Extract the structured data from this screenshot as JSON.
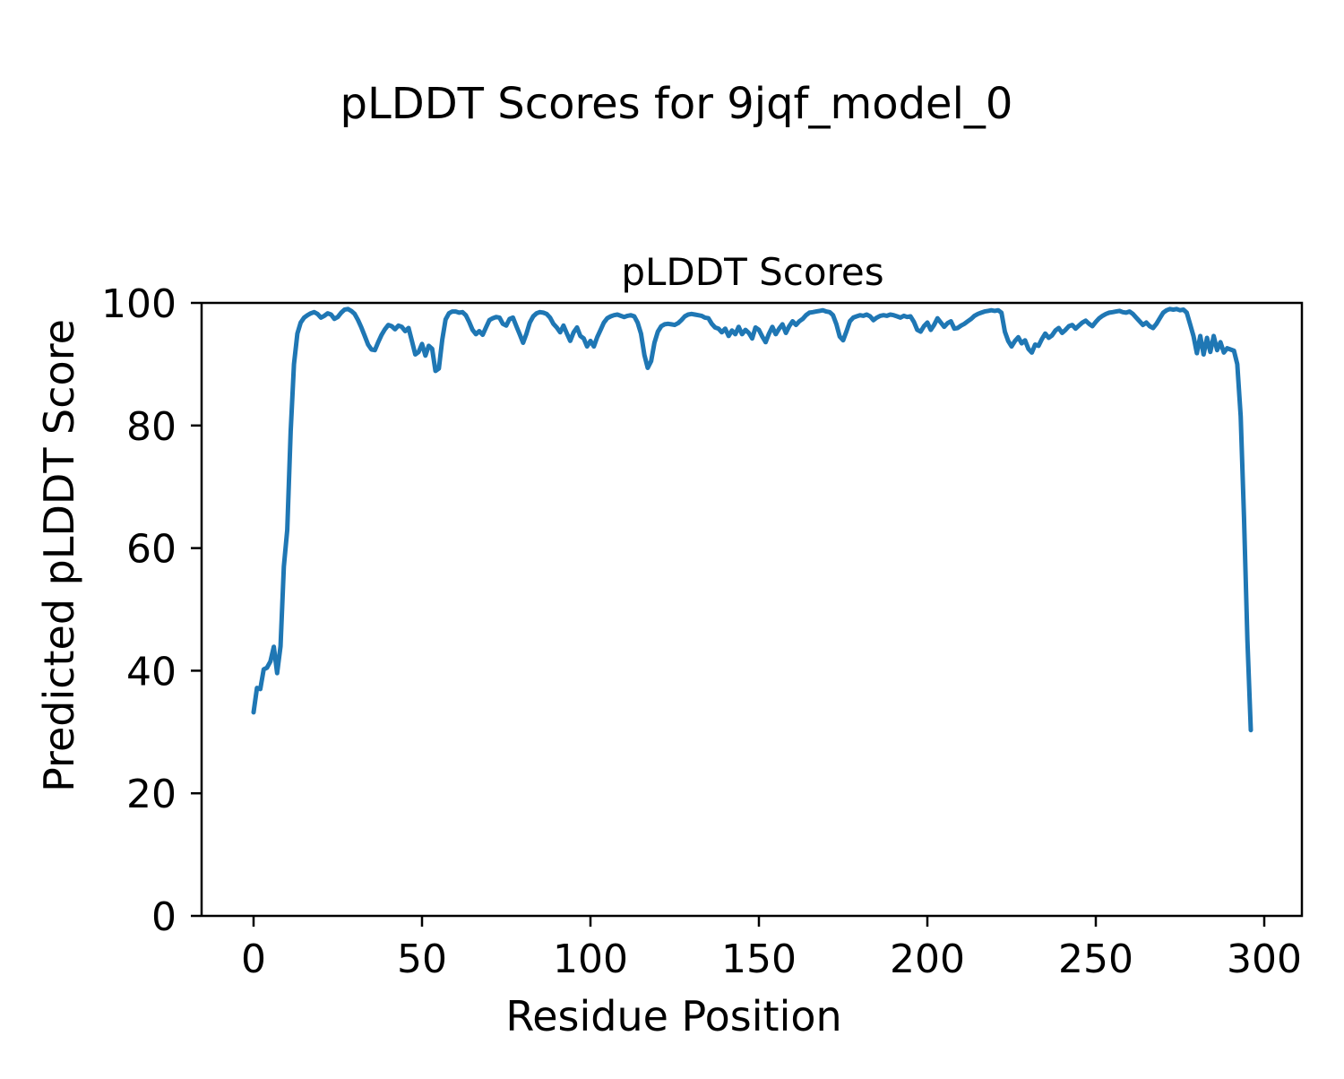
{
  "figure": {
    "suptitle": "pLDDT Scores for 9jqf_model_0",
    "background_color": "#ffffff",
    "text_color": "#000000"
  },
  "chart_data": {
    "type": "line",
    "suptitle": "pLDDT Scores for 9jqf_model_0",
    "title": "pLDDT Scores",
    "xlabel": "Residue Position",
    "ylabel": "Predicted pLDDT Score",
    "xlim": [
      -14.8,
      310.8
    ],
    "ylim": [
      0,
      100
    ],
    "x_ticks": [
      0,
      50,
      100,
      150,
      200,
      250,
      300
    ],
    "y_ticks": [
      0,
      20,
      40,
      60,
      80,
      100
    ],
    "grid": false,
    "legend": "none",
    "line_color": "#1f77b4",
    "axes_edge_color": "#000000",
    "series": [
      {
        "name": "pLDDT",
        "x": {
          "start": 0,
          "step": 1,
          "count": 297
        },
        "y": [
          33.2,
          37.2,
          37.0,
          40.2,
          40.5,
          41.5,
          43.9,
          39.6,
          44.0,
          57.0,
          63.0,
          79.0,
          90.0,
          95.0,
          96.8,
          97.6,
          98.0,
          98.3,
          98.5,
          98.2,
          97.6,
          97.9,
          98.3,
          98.1,
          97.4,
          97.7,
          98.4,
          98.9,
          99.0,
          98.7,
          98.2,
          97.2,
          96.0,
          94.6,
          93.2,
          92.4,
          92.3,
          93.6,
          94.8,
          95.7,
          96.4,
          96.2,
          95.7,
          96.3,
          96.1,
          95.4,
          95.9,
          93.8,
          91.6,
          92.0,
          93.3,
          91.4,
          93.0,
          92.5,
          88.9,
          89.3,
          94.0,
          97.3,
          98.3,
          98.6,
          98.6,
          98.4,
          98.5,
          98.0,
          96.9,
          95.6,
          94.9,
          95.4,
          94.8,
          96.0,
          97.2,
          97.5,
          97.7,
          97.6,
          96.6,
          96.3,
          97.4,
          97.6,
          96.2,
          94.9,
          93.5,
          95.0,
          96.8,
          97.8,
          98.3,
          98.5,
          98.4,
          98.2,
          97.6,
          96.6,
          96.0,
          95.2,
          96.3,
          95.0,
          93.8,
          95.2,
          96.0,
          94.6,
          94.2,
          92.9,
          93.8,
          92.9,
          94.4,
          95.6,
          96.8,
          97.5,
          97.8,
          98.0,
          98.1,
          97.9,
          97.7,
          97.9,
          98.0,
          97.8,
          96.8,
          95.0,
          91.5,
          89.4,
          90.5,
          93.5,
          95.3,
          96.2,
          96.5,
          96.6,
          96.5,
          96.4,
          96.7,
          97.2,
          97.8,
          98.1,
          98.2,
          98.1,
          98.0,
          97.9,
          97.6,
          97.5,
          96.6,
          96.0,
          95.8,
          95.2,
          95.8,
          94.6,
          95.5,
          94.9,
          96.1,
          94.9,
          95.6,
          95.1,
          94.2,
          96.0,
          95.6,
          94.5,
          93.6,
          95.0,
          96.1,
          94.9,
          95.8,
          96.5,
          95.1,
          96.2,
          97.0,
          96.4,
          97.0,
          97.4,
          98.0,
          98.4,
          98.5,
          98.6,
          98.7,
          98.8,
          98.6,
          98.5,
          98.0,
          96.5,
          94.5,
          93.9,
          95.4,
          97.0,
          97.6,
          97.8,
          98.0,
          97.9,
          98.1,
          97.8,
          97.2,
          97.6,
          97.9,
          98.0,
          97.9,
          98.1,
          98.0,
          97.8,
          97.6,
          97.9,
          97.7,
          97.8,
          96.9,
          95.6,
          95.3,
          96.2,
          96.8,
          95.6,
          96.4,
          97.5,
          96.8,
          96.1,
          96.7,
          97.0,
          95.8,
          95.9,
          96.3,
          96.6,
          97.0,
          97.4,
          97.9,
          98.2,
          98.4,
          98.6,
          98.7,
          98.8,
          98.7,
          98.8,
          98.4,
          95.3,
          93.8,
          92.9,
          93.8,
          94.4,
          93.4,
          93.9,
          92.5,
          91.9,
          93.2,
          93.0,
          94.1,
          95.0,
          94.3,
          94.7,
          95.5,
          95.9,
          95.1,
          95.6,
          96.2,
          96.4,
          95.8,
          96.3,
          96.8,
          97.1,
          96.6,
          96.2,
          96.9,
          97.5,
          97.9,
          98.2,
          98.4,
          98.5,
          98.6,
          98.7,
          98.5,
          98.4,
          98.6,
          98.2,
          97.6,
          97.0,
          96.4,
          96.8,
          96.2,
          95.9,
          96.6,
          97.5,
          98.4,
          98.8,
          99.0,
          98.9,
          99.0,
          98.8,
          98.9,
          98.4,
          96.5,
          94.6,
          91.8,
          94.6,
          91.6,
          94.3,
          92.0,
          94.6,
          92.3,
          93.6,
          91.9,
          92.6,
          92.4,
          92.2,
          90.0,
          81.5,
          65.0,
          45.0,
          30.3
        ]
      }
    ]
  }
}
